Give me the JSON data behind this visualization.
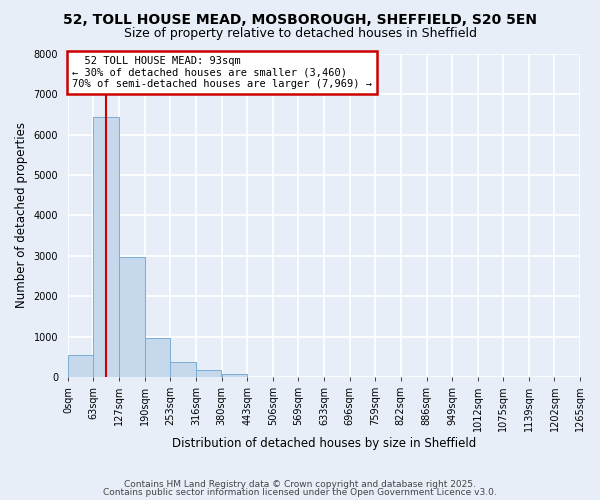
{
  "title1": "52, TOLL HOUSE MEAD, MOSBOROUGH, SHEFFIELD, S20 5EN",
  "title2": "Size of property relative to detached houses in Sheffield",
  "xlabel": "Distribution of detached houses by size in Sheffield",
  "ylabel": "Number of detached properties",
  "bar_values": [
    550,
    6450,
    2980,
    970,
    370,
    160,
    70,
    0,
    0,
    0,
    0,
    0,
    0,
    0,
    0,
    0,
    0,
    0,
    0,
    0
  ],
  "bar_left_edges": [
    0,
    63,
    127,
    190,
    253,
    316,
    380,
    443,
    506,
    569,
    633,
    696,
    759,
    822,
    886,
    949,
    1012,
    1075,
    1139,
    1202
  ],
  "bin_width": 63,
  "xtick_labels": [
    "0sqm",
    "63sqm",
    "127sqm",
    "190sqm",
    "253sqm",
    "316sqm",
    "380sqm",
    "443sqm",
    "506sqm",
    "569sqm",
    "633sqm",
    "696sqm",
    "759sqm",
    "822sqm",
    "886sqm",
    "949sqm",
    "1012sqm",
    "1075sqm",
    "1139sqm",
    "1202sqm",
    "1265sqm"
  ],
  "ylim": [
    0,
    8000
  ],
  "yticks": [
    0,
    1000,
    2000,
    3000,
    4000,
    5000,
    6000,
    7000,
    8000
  ],
  "bar_color": "#c6d9ec",
  "bar_edge_color": "#7aadd4",
  "property_size": 93,
  "property_label": "52 TOLL HOUSE MEAD: 93sqm",
  "pct_smaller": 30,
  "count_smaller": 3460,
  "pct_larger": 70,
  "count_larger": 7969,
  "vline_color": "#cc0000",
  "annotation_box_edge": "#cc0000",
  "footer1": "Contains HM Land Registry data © Crown copyright and database right 2025.",
  "footer2": "Contains public sector information licensed under the Open Government Licence v3.0.",
  "background_color": "#e8eef8",
  "grid_color": "#ffffff",
  "title_fontsize": 10,
  "subtitle_fontsize": 9,
  "axis_label_fontsize": 8.5,
  "tick_fontsize": 7,
  "footer_fontsize": 6.5
}
